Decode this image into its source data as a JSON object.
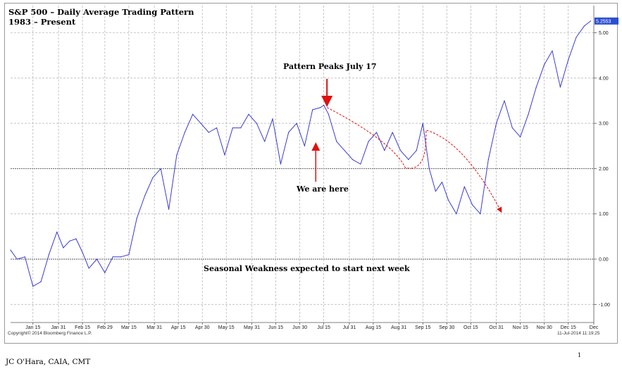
{
  "title_line1": "S&P 500 – Daily Average Trading Pattern",
  "title_line2": "1983 – Present",
  "copyright": "Copyright© 2014 Bloomberg Finance L.P.",
  "timestamp": "11-Jul-2014 11:19:25",
  "author": "JC O'Hara, CAIA, CMT",
  "page_number": "1",
  "colors": {
    "series": "#3b3bd6",
    "arrow": "#e01010",
    "last_value_badge": "#2c4fd0"
  },
  "chart_data": {
    "type": "line",
    "title": "S&P 500 – Daily Average Trading Pattern",
    "subtitle": "1983 – Present",
    "xlabel": "",
    "ylabel": "",
    "ylim": [
      -1.4,
      5.6
    ],
    "y_ticks": [
      "-1.00",
      "0.00",
      "1.00",
      "2.00",
      "3.00",
      "4.00",
      "5.00"
    ],
    "y_tick_values": [
      -1,
      0,
      1,
      2,
      3,
      4,
      5
    ],
    "x_ticks": [
      "Jan 15",
      "Jan 31",
      "Feb 15",
      "Feb 29",
      "Mar 15",
      "Mar 31",
      "Apr 15",
      "Apr 30",
      "May 15",
      "May 31",
      "Jun 15",
      "Jun 30",
      "Jul 15",
      "Jul 31",
      "Aug 15",
      "Aug 31",
      "Sep 15",
      "Sep 30",
      "Oct 15",
      "Oct 31",
      "Nov 15",
      "Nov 30",
      "Dec 15",
      "Dec"
    ],
    "x_tick_days": [
      15,
      31,
      46,
      60,
      75,
      91,
      106,
      121,
      136,
      152,
      167,
      182,
      197,
      213,
      228,
      244,
      259,
      274,
      289,
      305,
      320,
      335,
      350,
      366
    ],
    "xlim": [
      1,
      366
    ],
    "grid": true,
    "reference_lines": [
      0,
      2
    ],
    "last_value": "5.2553",
    "series": [
      {
        "x": [
          1,
          5,
          10,
          15,
          20,
          25,
          30,
          34,
          38,
          42,
          46,
          50,
          55,
          60,
          65,
          70,
          75,
          80,
          85,
          90,
          95,
          100,
          105,
          110,
          115,
          120,
          125,
          130,
          135,
          140,
          145,
          150,
          155,
          160,
          165,
          170,
          175,
          180,
          185,
          190,
          195,
          197,
          200,
          205,
          210,
          215,
          220,
          225,
          230,
          235,
          240,
          245,
          250,
          255,
          259,
          263,
          267,
          271,
          275,
          280,
          285,
          290,
          295,
          300,
          305,
          310,
          315,
          320,
          325,
          330,
          335,
          340,
          345,
          350,
          355,
          360,
          364
        ],
        "values": [
          0.2,
          0.0,
          0.05,
          -0.6,
          -0.5,
          0.1,
          0.6,
          0.25,
          0.4,
          0.45,
          0.15,
          -0.2,
          0.0,
          -0.3,
          0.05,
          0.05,
          0.1,
          0.9,
          1.4,
          1.8,
          2.0,
          1.1,
          2.3,
          2.8,
          3.2,
          3.0,
          2.8,
          2.9,
          2.3,
          2.9,
          2.9,
          3.2,
          3.0,
          2.6,
          3.1,
          2.1,
          2.8,
          3.0,
          2.5,
          3.3,
          3.35,
          3.4,
          3.2,
          2.6,
          2.4,
          2.2,
          2.1,
          2.6,
          2.8,
          2.4,
          2.8,
          2.4,
          2.2,
          2.4,
          3.0,
          2.0,
          1.5,
          1.7,
          1.3,
          1.0,
          1.6,
          1.2,
          1.0,
          2.2,
          3.0,
          3.5,
          2.9,
          2.7,
          3.2,
          3.8,
          4.3,
          4.6,
          3.8,
          4.4,
          4.9,
          5.15,
          5.26
        ]
      }
    ],
    "annotations": [
      {
        "text": "Pattern Peaks July 17"
      },
      {
        "text": "We are here"
      },
      {
        "text": "Seasonal Weakness expected to start next week"
      }
    ]
  }
}
